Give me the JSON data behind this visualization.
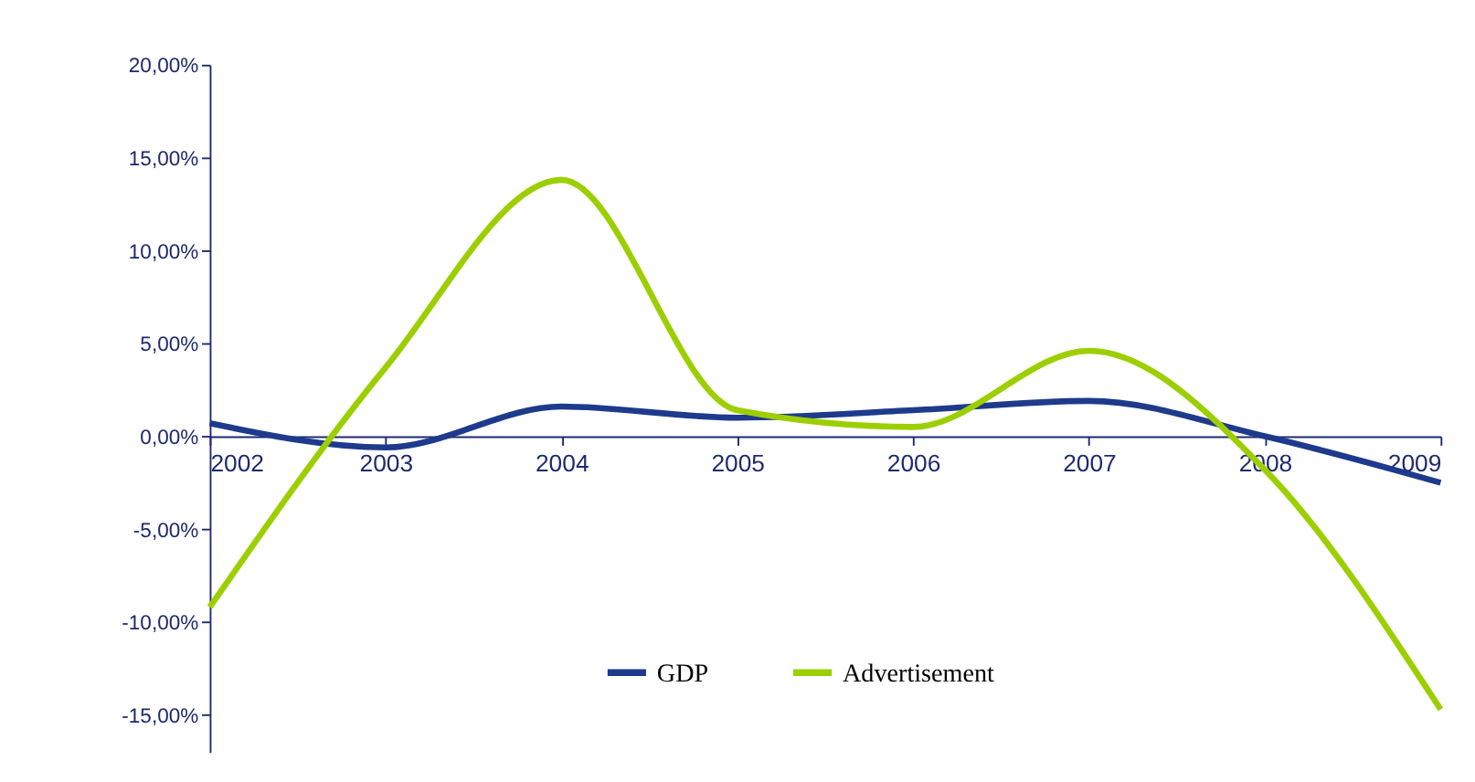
{
  "chart_data": {
    "type": "line",
    "x": [
      2002,
      2003,
      2004,
      2005,
      2006,
      2007,
      2008,
      2009
    ],
    "series": [
      {
        "name": "GDP",
        "color": "#1e3a8c",
        "values": [
          0.7,
          -0.6,
          1.6,
          1.0,
          1.4,
          1.9,
          0.0,
          -2.5
        ]
      },
      {
        "name": "Advertisement",
        "color": "#9ccf00",
        "values": [
          -9.2,
          3.7,
          13.8,
          1.4,
          0.5,
          4.6,
          -1.8,
          -14.7
        ]
      }
    ],
    "xlim": [
      2002,
      2009
    ],
    "xticks": [
      2002,
      2003,
      2004,
      2005,
      2006,
      2007,
      2008,
      2009
    ],
    "ylim": [
      -17,
      20
    ],
    "yticks": [
      {
        "value": -15,
        "label": "-15,00%"
      },
      {
        "value": -10,
        "label": "-10,00%"
      },
      {
        "value": -5,
        "label": "-5,00%"
      },
      {
        "value": 0,
        "label": "0,00%"
      },
      {
        "value": 5,
        "label": "5,00%"
      },
      {
        "value": 10,
        "label": "10,00%"
      },
      {
        "value": 15,
        "label": "15,00%"
      },
      {
        "value": 20,
        "label": "20,00%"
      }
    ],
    "grid": false,
    "legend": "bottom",
    "marker": "none",
    "line_style": "solid"
  }
}
